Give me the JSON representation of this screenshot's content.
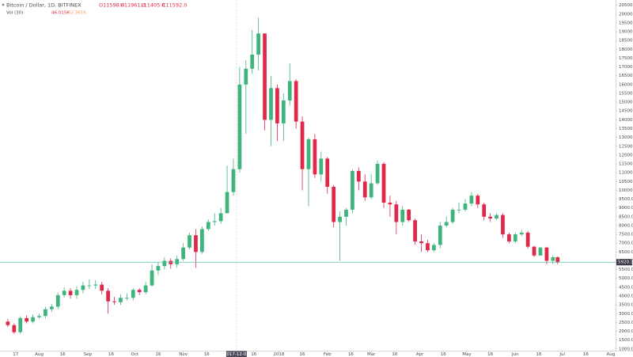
{
  "chart_data": {
    "type": "candlestick",
    "title": "Bitcoin / Dollar, 1D, BITFINEX",
    "ohlc_labels": [
      "O11598.0",
      "H11961.0",
      "L11405.0",
      "C11592.0"
    ],
    "volume_legend": {
      "label": "Vol (30)",
      "values": [
        "46.015K",
        "62.361K"
      ]
    },
    "up_color": "#3fb47c",
    "down_color": "#e0294a",
    "x": [
      "2017-07-12",
      "2017-07-16",
      "2017-07-20",
      "2017-07-24",
      "2017-07-28",
      "2017-08-01",
      "2017-08-05",
      "2017-08-09",
      "2017-08-13",
      "2017-08-17",
      "2017-08-21",
      "2017-08-25",
      "2017-08-29",
      "2017-09-02",
      "2017-09-06",
      "2017-09-10",
      "2017-09-14",
      "2017-09-18",
      "2017-09-22",
      "2017-09-26",
      "2017-09-30",
      "2017-10-04",
      "2017-10-08",
      "2017-10-12",
      "2017-10-16",
      "2017-10-20",
      "2017-10-24",
      "2017-10-28",
      "2017-11-01",
      "2017-11-05",
      "2017-11-09",
      "2017-11-13",
      "2017-11-17",
      "2017-11-21",
      "2017-11-25",
      "2017-11-29",
      "2017-12-03",
      "2017-12-07",
      "2017-12-11",
      "2017-12-15",
      "2017-12-19",
      "2017-12-23",
      "2017-12-27",
      "2017-12-31",
      "2018-01-04",
      "2018-01-08",
      "2018-01-12",
      "2018-01-16",
      "2018-01-20",
      "2018-01-24",
      "2018-01-28",
      "2018-02-01",
      "2018-02-05",
      "2018-02-09",
      "2018-02-13",
      "2018-02-17",
      "2018-02-21",
      "2018-02-25",
      "2018-03-01",
      "2018-03-05",
      "2018-03-09",
      "2018-03-13",
      "2018-03-17",
      "2018-03-21",
      "2018-03-25",
      "2018-03-29",
      "2018-04-02",
      "2018-04-06",
      "2018-04-10",
      "2018-04-14",
      "2018-04-18",
      "2018-04-22",
      "2018-04-26",
      "2018-04-30",
      "2018-05-04",
      "2018-05-08",
      "2018-05-12",
      "2018-05-16",
      "2018-05-20",
      "2018-05-24",
      "2018-05-28",
      "2018-06-01",
      "2018-06-05",
      "2018-06-09",
      "2018-06-13",
      "2018-06-17",
      "2018-06-21",
      "2018-06-25",
      "2018-06-28"
    ],
    "open": [
      2550,
      2350,
      1950,
      2750,
      2550,
      2800,
      2870,
      3250,
      3400,
      4050,
      4300,
      4050,
      4350,
      4600,
      4600,
      4650,
      4300,
      3700,
      3650,
      3900,
      3900,
      4350,
      4220,
      4600,
      5450,
      5700,
      6000,
      5800,
      6100,
      6750,
      7450,
      6500,
      7800,
      8200,
      8250,
      8700,
      9900,
      11200,
      16000,
      16900,
      17700,
      18900,
      14000,
      15800,
      13800,
      15100,
      16200,
      13900,
      11200,
      12900,
      10900,
      11800,
      10200,
      8200,
      8500,
      8900,
      11100,
      10500,
      9600,
      10400,
      11500,
      9300,
      9200,
      8200,
      8900,
      8300,
      7100,
      7000,
      6600,
      6900,
      8000,
      8200,
      8900,
      8900,
      9250,
      9700,
      9200,
      8500,
      8400,
      8600,
      7500,
      7100,
      7500,
      7600,
      6800,
      6300,
      6750,
      6000,
      6200
    ],
    "high": [
      2700,
      2450,
      2850,
      2900,
      2950,
      3000,
      3400,
      3550,
      4200,
      4500,
      4450,
      4550,
      4800,
      4950,
      4900,
      4800,
      4450,
      3950,
      4100,
      4150,
      4450,
      4450,
      4800,
      5800,
      5900,
      6200,
      6150,
      6300,
      7000,
      7600,
      7800,
      7950,
      8350,
      8700,
      9000,
      11400,
      11800,
      17000,
      17400,
      19100,
      19800,
      18900,
      16500,
      16000,
      15500,
      17200,
      16300,
      14200,
      13000,
      13200,
      12200,
      11900,
      10300,
      8800,
      9000,
      11200,
      11300,
      10900,
      10900,
      11700,
      11600,
      9700,
      9400,
      9100,
      8950,
      8400,
      7500,
      7200,
      7000,
      8200,
      8500,
      9000,
      9300,
      9500,
      9900,
      9800,
      9300,
      8700,
      8700,
      8700,
      7600,
      7600,
      7750,
      7700,
      6850,
      6800,
      6800,
      6300,
      6250
    ],
    "low": [
      2250,
      1850,
      1850,
      2450,
      2450,
      2700,
      2750,
      3100,
      3250,
      3900,
      3850,
      3850,
      4150,
      4400,
      4400,
      4100,
      3000,
      3500,
      3500,
      3750,
      3750,
      4050,
      4100,
      4550,
      5200,
      5500,
      5550,
      5600,
      6000,
      6650,
      5600,
      6400,
      7700,
      8000,
      8100,
      8700,
      9700,
      11000,
      13200,
      16600,
      16800,
      13400,
      12500,
      12800,
      12800,
      14800,
      13500,
      10000,
      9100,
      10700,
      10500,
      9800,
      7900,
      6000,
      8000,
      8700,
      10000,
      9400,
      9500,
      10300,
      9000,
      8500,
      7500,
      8000,
      8200,
      6900,
      6500,
      6500,
      6500,
      6700,
      7900,
      8100,
      8700,
      8800,
      9100,
      9000,
      8300,
      8200,
      8300,
      7300,
      7000,
      7000,
      7400,
      6700,
      6200,
      6300,
      5800,
      5800,
      5800
    ],
    "close": [
      2350,
      1950,
      2750,
      2550,
      2800,
      2870,
      3250,
      3400,
      4050,
      4300,
      4050,
      4350,
      4600,
      4600,
      4650,
      4300,
      3700,
      3650,
      3900,
      3900,
      4350,
      4220,
      4600,
      5450,
      5700,
      6000,
      5800,
      6100,
      6750,
      7450,
      6500,
      7800,
      8200,
      8250,
      8700,
      9900,
      11200,
      16000,
      16900,
      17700,
      18900,
      14000,
      15800,
      13800,
      15100,
      16200,
      13900,
      11200,
      12900,
      10900,
      11800,
      10200,
      8200,
      8500,
      8900,
      11100,
      10500,
      9600,
      10400,
      11500,
      9300,
      9200,
      8200,
      8900,
      8300,
      7100,
      7000,
      6600,
      6900,
      8000,
      8200,
      8900,
      8900,
      9250,
      9700,
      9200,
      8500,
      8400,
      8600,
      7500,
      7100,
      7500,
      7600,
      6800,
      6300,
      6750,
      6000,
      6200,
      5920
    ],
    "ylim": [
      900,
      20800
    ],
    "yticks": [
      {
        "value": 1000,
        "label": "1000.0"
      },
      {
        "value": 1500,
        "label": "1500.0"
      },
      {
        "value": 2000,
        "label": "2000.0"
      },
      {
        "value": 2500,
        "label": "2500.0"
      },
      {
        "value": 3000,
        "label": "3000.0"
      },
      {
        "value": 3500,
        "label": "3500.0"
      },
      {
        "value": 4000,
        "label": "4000.0"
      },
      {
        "value": 4500,
        "label": "4500.0"
      },
      {
        "value": 5000,
        "label": "5000.0"
      },
      {
        "value": 5500,
        "label": "5500.0"
      },
      {
        "value": 6000,
        "label": "6000.0"
      },
      {
        "value": 6500,
        "label": "6500.0"
      },
      {
        "value": 7000,
        "label": "7000.0"
      },
      {
        "value": 7500,
        "label": "7500.0"
      },
      {
        "value": 8000,
        "label": "8000.0"
      },
      {
        "value": 8500,
        "label": "8500.0"
      },
      {
        "value": 9000,
        "label": "9000.0"
      },
      {
        "value": 9500,
        "label": "9500.0"
      },
      {
        "value": 10000,
        "label": "10000.0"
      },
      {
        "value": 10500,
        "label": "10500.0"
      },
      {
        "value": 11000,
        "label": "11000.0"
      },
      {
        "value": 11500,
        "label": "11500.0"
      },
      {
        "value": 12000,
        "label": "12000.0"
      },
      {
        "value": 12500,
        "label": "12500.0"
      },
      {
        "value": 13000,
        "label": "13000.0"
      },
      {
        "value": 13500,
        "label": "13500.0"
      },
      {
        "value": 14000,
        "label": "14000.0"
      },
      {
        "value": 14500,
        "label": "14500.0"
      },
      {
        "value": 15000,
        "label": "15000.0"
      },
      {
        "value": 15500,
        "label": "15500.0"
      },
      {
        "value": 16000,
        "label": "16000.0"
      },
      {
        "value": 16500,
        "label": "16500.0"
      },
      {
        "value": 17000,
        "label": "17000.0"
      },
      {
        "value": 17500,
        "label": "17500.0"
      },
      {
        "value": 18000,
        "label": "18000.0"
      },
      {
        "value": 18500,
        "label": "18500.0"
      },
      {
        "value": 19000,
        "label": "19000.0"
      },
      {
        "value": 19500,
        "label": "19500.0"
      },
      {
        "value": 20000,
        "label": "20000.0"
      },
      {
        "value": 20500,
        "label": "20500.0"
      }
    ],
    "xlim": [
      "2017-07-07",
      "2018-08-04"
    ],
    "xticks": [
      {
        "value": "2017-07-17",
        "label": "17"
      },
      {
        "value": "2017-08-01",
        "label": "Aug"
      },
      {
        "value": "2017-08-16",
        "label": "16"
      },
      {
        "value": "2017-09-01",
        "label": "Sep"
      },
      {
        "value": "2017-09-16",
        "label": "16"
      },
      {
        "value": "2017-10-01",
        "label": "Oct"
      },
      {
        "value": "2017-10-16",
        "label": "16"
      },
      {
        "value": "2017-11-01",
        "label": "Nov"
      },
      {
        "value": "2017-11-16",
        "label": "16"
      },
      {
        "value": "2017-12-16",
        "label": "16"
      },
      {
        "value": "2018-01-01",
        "label": "2018"
      },
      {
        "value": "2018-01-16",
        "label": "16"
      },
      {
        "value": "2018-02-01",
        "label": "Feb"
      },
      {
        "value": "2018-02-16",
        "label": "16"
      },
      {
        "value": "2018-03-01",
        "label": "Mar"
      },
      {
        "value": "2018-03-16",
        "label": "16"
      },
      {
        "value": "2018-04-01",
        "label": "Apr"
      },
      {
        "value": "2018-04-16",
        "label": "16"
      },
      {
        "value": "2018-05-01",
        "label": "May"
      },
      {
        "value": "2018-05-16",
        "label": "16"
      },
      {
        "value": "2018-06-01",
        "label": "Jun"
      },
      {
        "value": "2018-06-16",
        "label": "16"
      },
      {
        "value": "2018-07-01",
        "label": "Jul"
      },
      {
        "value": "2018-07-16",
        "label": "16"
      },
      {
        "value": "2018-08-01",
        "label": "Aug"
      }
    ],
    "last_price": 5920.3,
    "last_price_color": "#5cbfa8",
    "crosshair_x": "2017-12-05",
    "grid": false
  }
}
